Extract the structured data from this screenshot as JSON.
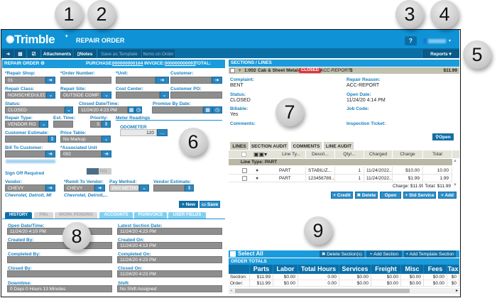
{
  "header": {
    "logo": "Trimble",
    "logo_caret": "▾",
    "title": "REPAIR ORDER",
    "help": "?",
    "user_caret": "▾"
  },
  "toolbar": {
    "attachments": "Attachments",
    "notes": "Notes",
    "save_template": "Save as Template",
    "items_on_order": "Items on Order",
    "reports": "Reports ▾"
  },
  "order": {
    "title": "REPAIR ORDER",
    "purchase_label": "PURCHASE:",
    "purchase": "000000000164",
    "invoice_label": "INVOICE:",
    "invoice": "000000000091",
    "total": "TOTAL: $11.99"
  },
  "form": {
    "repair_shop": {
      "label": "*Repair Shop:",
      "value": "01"
    },
    "order_number": {
      "label": "*Order Number:"
    },
    "unit": {
      "label": "*Unit:"
    },
    "customer": {
      "label": "Customer:"
    },
    "repair_class": {
      "label": "Repair Class:",
      "value": "NONSCHEDULED"
    },
    "repair_site": {
      "label": "Repair Site:",
      "value": "OUTSIDE COMP"
    },
    "cost_center": {
      "label": "Cost Center:"
    },
    "customer_po": {
      "label": "Customer PO:"
    },
    "status": {
      "label": "Status:",
      "value": "CLOSED"
    },
    "closed_date": {
      "label": "Closed Date/Time:",
      "value": "11/24/20   4:23 PM"
    },
    "promise_date": {
      "label": "Promise By Date:"
    },
    "repair_type": {
      "label": "Repair Type:",
      "value": "VENDOR RO"
    },
    "est_time": {
      "label": "Est. Time:"
    },
    "priority": {
      "label": "Priority:",
      "value": "5"
    },
    "meter_readings": {
      "label": "Meter Readings",
      "odometer_label": "ODOMETER",
      "odometer": "120",
      "more": "..."
    },
    "customer_estimate": {
      "label": "Customer Estimate:"
    },
    "price_table": {
      "label": "Price Table:",
      "value": "No Markup"
    },
    "bill_to": {
      "label": "Bill To Customer:"
    },
    "associated_unit": {
      "label": "*Associated Unit",
      "value": "002"
    },
    "sign_off": {
      "label": "Sign Off Required",
      "toggle": "NO"
    },
    "vendor": {
      "label": "Vendor:",
      "value": "CHEVY",
      "sub": "Chevrolet, Detroit, MI"
    },
    "remit_vendor": {
      "label": "*Remit To Vendor:",
      "value": "CHEVY",
      "sub": "Chevrolet, Detroit,..."
    },
    "pay_method": {
      "label": "Pay Method:",
      "placeholder": "PAY METHOD"
    },
    "vendor_estimate": {
      "label": "Vendor Estimate:"
    },
    "new": "+ New",
    "save": "Save"
  },
  "bottom_tabs": [
    "HISTORY",
    "PMs",
    "WORK PENDING",
    "ACCOUNTS",
    "PO/INVOICE",
    "USER FIELDS"
  ],
  "history": [
    {
      "label": "Open Date/Time:",
      "value": "11/24/20   4:10 PM"
    },
    {
      "label": "Latest Section Date:",
      "value": "11/24/20   4:23 PM"
    },
    {
      "label": "Created By:",
      "value": ""
    },
    {
      "label": "Created On:",
      "value": "11/24/20   4:13 PM"
    },
    {
      "label": "Completed By:",
      "value": ""
    },
    {
      "label": "Completed On:",
      "value": "11/24/20   4:23 PM"
    },
    {
      "label": "Closed By:",
      "value": ""
    },
    {
      "label": "Closed On:",
      "value": "11/24/20   4:23 PM"
    },
    {
      "label": "Downtime:",
      "value": "0 Days 0 Hours 13 Minutes"
    },
    {
      "label": "Shift:",
      "value": "No Shift Assigned"
    }
  ],
  "sections": {
    "title": "SECTIONS / LINES",
    "row": {
      "code": "1:002",
      "name": "Cab & Sheet Metal",
      "badge": "CLOSED",
      "reason": "ACC-REPORT",
      "dollar": "$",
      "amount": "$11.99"
    },
    "details": {
      "complaint_label": "Complaint:",
      "complaint": "BENT",
      "reason_label": "Repair Reason:",
      "reason": "ACC-REPORT",
      "status_label": "Status:",
      "status": "CLOSED",
      "open_date_label": "Open Date:",
      "open_date": "11/24/20   4:14 PM",
      "billable_label": "Billable:",
      "billable": "Yes",
      "job_code_label": "Job Code:",
      "comments_label": "Comments:",
      "inspection_label": "Inspection Ticket:",
      "open": "Open"
    }
  },
  "line_tabs": [
    "LINES",
    "SECTION AUDIT",
    "COMMENTS",
    "LINE AUDIT"
  ],
  "lines": {
    "columns": [
      "Line Ty...",
      "Descri...",
      "Qty/...",
      "Charged",
      "Charge",
      "Total"
    ],
    "group": "Line Type: PART",
    "rows": [
      [
        "PART",
        "STABILIZ...",
        "1",
        "11/24/2022...",
        "$10.00",
        "10.00"
      ],
      [
        "PART",
        "123456789...",
        "1",
        "11/24/2022...",
        "$1.99",
        "1.99"
      ]
    ],
    "summary_charge": "Charge: $11.99",
    "summary_total": "Total: $11.99",
    "buttons": [
      "+ Credit",
      "✖ Delete",
      "Open",
      "+ Std Service",
      "+ Add"
    ]
  },
  "section_bar": {
    "select_all": "Select All",
    "delete": "✖ Delete Section(s)",
    "add": "+ Add Section",
    "add_template": "+ Add Template Section"
  },
  "order_totals": {
    "title": "ORDER TOTALS",
    "columns": [
      "Parts",
      "Labor",
      "Total Hours",
      "Services",
      "Freight",
      "Misc",
      "Fees",
      "Tax"
    ],
    "rows": [
      {
        "label": "Section:",
        "values": [
          "$11.99",
          "$0.00",
          "0.00",
          "$0.00",
          "$0.00",
          "$0.00",
          "$0.00",
          "$0"
        ]
      },
      {
        "label": "Order:",
        "values": [
          "$11.99",
          "$0.00",
          "0.00",
          "$0.00",
          "$0.00",
          "$0.00",
          "$0.00",
          "$0"
        ]
      }
    ]
  },
  "callouts": [
    "1",
    "2",
    "3",
    "4",
    "5",
    "6",
    "7",
    "8",
    "9"
  ],
  "colors": {
    "brand": "#0f93d6",
    "toolbar": "#0b6fa6",
    "label": "#1a7fc0",
    "closed_badge": "#d9363e"
  }
}
